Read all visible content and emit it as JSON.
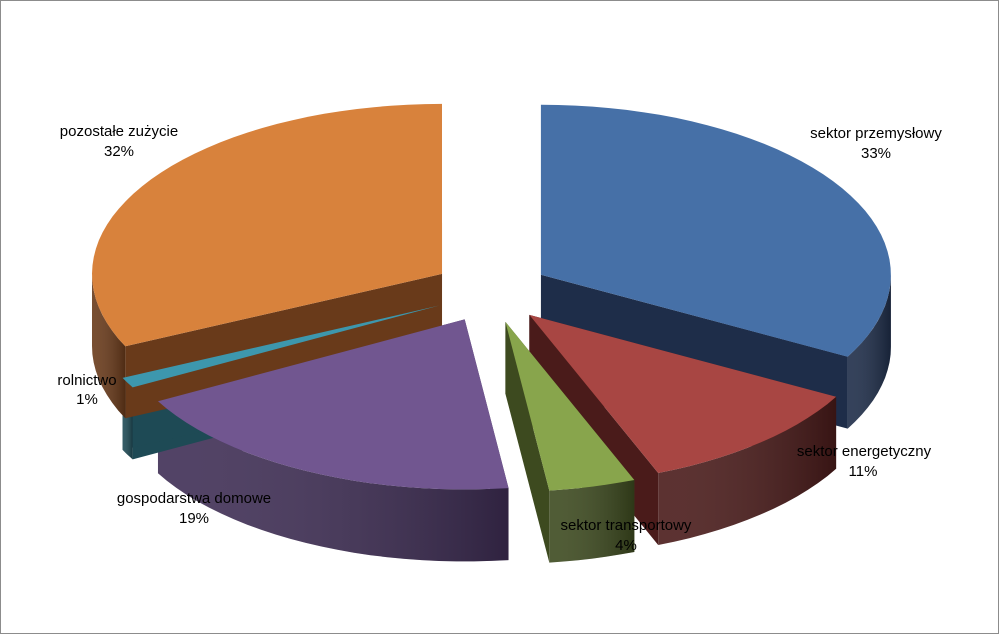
{
  "chart_data": {
    "type": "pie",
    "title": "",
    "slices": [
      {
        "label": "sektor  przemysłowy",
        "value": 33,
        "value_label": "33%",
        "color": "#4670A7",
        "side": "#1E2D49"
      },
      {
        "label": "sektor  energetyczny",
        "value": 11,
        "value_label": "11%",
        "color": "#A84643",
        "side": "#4A1B1A"
      },
      {
        "label": "sektor  transportowy",
        "value": 4,
        "value_label": "4%",
        "color": "#88A54C",
        "side": "#3D4A1F"
      },
      {
        "label": "gospodarstwa domowe",
        "value": 19,
        "value_label": "19%",
        "color": "#715690",
        "side": "#3F2E55"
      },
      {
        "label": "rolnictwo",
        "value": 1,
        "value_label": "1%",
        "color": "#3D97AD",
        "side": "#1E4A55"
      },
      {
        "label": "pozostałe zużycie",
        "value": 32,
        "value_label": "32%",
        "color": "#D8823C",
        "side": "#693A1A"
      }
    ],
    "exploded": true,
    "three_d": true,
    "legend": "none"
  }
}
